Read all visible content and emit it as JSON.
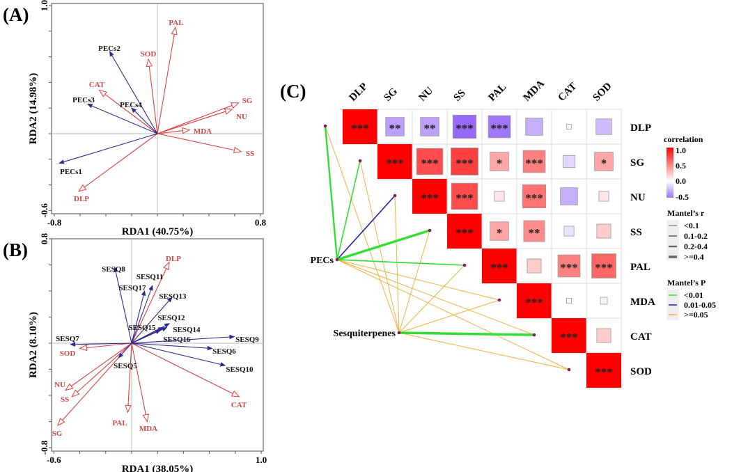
{
  "chart_data": [
    {
      "panel_label": "(A)",
      "type": "scatter",
      "subtype": "RDA biplot",
      "xlabel": "RDA1 (40.75%)",
      "ylabel": "RDA2 (14.98%)",
      "xlim": [
        -0.8,
        0.8
      ],
      "ylim": [
        -0.6,
        1.0
      ],
      "xtick_labels": [
        "-0.8",
        "0.8"
      ],
      "ytick_labels": [
        "-0.6",
        "1.0"
      ],
      "colors": {
        "response": "#d9403f",
        "explanatory": "#2b2b8c"
      },
      "response_vectors": [
        {
          "name": "PAL",
          "x": 0.14,
          "y": 0.83
        },
        {
          "name": "SOD",
          "x": -0.07,
          "y": 0.58
        },
        {
          "name": "CAT",
          "x": -0.45,
          "y": 0.34
        },
        {
          "name": "SG",
          "x": 0.63,
          "y": 0.24
        },
        {
          "name": "NU",
          "x": 0.58,
          "y": 0.19
        },
        {
          "name": "MDA",
          "x": 0.25,
          "y": 0.03
        },
        {
          "name": "SS",
          "x": 0.65,
          "y": -0.14
        },
        {
          "name": "DLP",
          "x": -0.61,
          "y": -0.45
        }
      ],
      "explanatory_vectors": [
        {
          "name": "PECs2",
          "x": -0.37,
          "y": 0.64
        },
        {
          "name": "PECs3",
          "x": -0.54,
          "y": 0.23
        },
        {
          "name": "PECs4",
          "x": -0.2,
          "y": 0.2
        },
        {
          "name": "PECs1",
          "x": -0.76,
          "y": -0.23
        }
      ]
    },
    {
      "panel_label": "(B)",
      "type": "scatter",
      "subtype": "RDA biplot",
      "xlabel": "RDA1 (38.05%)",
      "ylabel": "RDA2 (8.10%)",
      "xlim": [
        -0.6,
        1.0
      ],
      "ylim": [
        -0.8,
        0.8
      ],
      "xtick_labels": [
        "-0.6",
        "1.0"
      ],
      "ytick_labels": [
        "-0.8",
        "0.8"
      ],
      "colors": {
        "response": "#d9403f",
        "explanatory": "#2b2b8c"
      },
      "response_vectors": [
        {
          "name": "DLP",
          "x": 0.29,
          "y": 0.62
        },
        {
          "name": "SOD",
          "x": -0.4,
          "y": -0.04
        },
        {
          "name": "NU",
          "x": -0.51,
          "y": -0.36
        },
        {
          "name": "SS",
          "x": -0.46,
          "y": -0.41
        },
        {
          "name": "SG",
          "x": -0.57,
          "y": -0.63
        },
        {
          "name": "PAL",
          "x": -0.03,
          "y": -0.53
        },
        {
          "name": "MDA",
          "x": 0.12,
          "y": -0.6
        },
        {
          "name": "CAT",
          "x": 0.83,
          "y": -0.41
        }
      ],
      "explanatory_vectors": [
        {
          "name": "SESQ8",
          "x": -0.13,
          "y": 0.58
        },
        {
          "name": "SESQ11",
          "x": 0.16,
          "y": 0.44
        },
        {
          "name": "SESQ17",
          "x": 0.1,
          "y": 0.4
        },
        {
          "name": "SESQ13",
          "x": 0.31,
          "y": 0.35
        },
        {
          "name": "SESQ12",
          "x": 0.29,
          "y": 0.15
        },
        {
          "name": "SESQ15",
          "x": 0.24,
          "y": 0.12
        },
        {
          "name": "SESQ14",
          "x": 0.27,
          "y": 0.12
        },
        {
          "name": "SESQ16",
          "x": 0.22,
          "y": 0.1
        },
        {
          "name": "SESQ9",
          "x": 0.79,
          "y": 0.05
        },
        {
          "name": "SESQ6",
          "x": 0.62,
          "y": -0.04
        },
        {
          "name": "SESQ10",
          "x": 0.72,
          "y": -0.17
        },
        {
          "name": "SESQ7",
          "x": -0.47,
          "y": -0.01
        },
        {
          "name": "SESQ5",
          "x": -0.1,
          "y": -0.11
        }
      ]
    },
    {
      "panel_label": "(C)",
      "type": "heatmap",
      "variables": [
        "DLP",
        "SG",
        "NU",
        "SS",
        "PAL",
        "MDA",
        "CAT",
        "SOD"
      ],
      "correlation": [
        [
          1,
          -0.35,
          -0.35,
          -0.55,
          -0.5,
          -0.3,
          -0.02,
          -0.25
        ],
        [
          null,
          1,
          0.7,
          0.75,
          0.35,
          0.5,
          -0.15,
          0.35
        ],
        [
          null,
          null,
          1,
          0.7,
          0.1,
          0.55,
          -0.3,
          0.1
        ],
        [
          null,
          null,
          null,
          1,
          0.35,
          0.45,
          -0.1,
          0.2
        ],
        [
          null,
          null,
          null,
          null,
          1,
          0.2,
          0.5,
          0.6
        ],
        [
          null,
          null,
          null,
          null,
          null,
          1,
          0.02,
          -0.05
        ],
        [
          null,
          null,
          null,
          null,
          null,
          null,
          1,
          0.2
        ],
        [
          null,
          null,
          null,
          null,
          null,
          null,
          null,
          1
        ]
      ],
      "significance": [
        [
          "***",
          "**",
          "**",
          "***",
          "***",
          "",
          "",
          ""
        ],
        [
          "",
          "***",
          "***",
          "***",
          "*",
          "***",
          "",
          "*"
        ],
        [
          "",
          "",
          "***",
          "***",
          "",
          "***",
          "",
          ""
        ],
        [
          "",
          "",
          "",
          "***",
          "*",
          "**",
          "",
          ""
        ],
        [
          "",
          "",
          "",
          "",
          "***",
          "",
          "***",
          "***"
        ],
        [
          "",
          "",
          "",
          "",
          "",
          "***",
          "",
          ""
        ],
        [
          "",
          "",
          "",
          "",
          "",
          "",
          "***",
          ""
        ],
        [
          "",
          "",
          "",
          "",
          "",
          "",
          "",
          "***"
        ]
      ],
      "mantel": {
        "nodes": [
          "PECs",
          "Sesquiterpenes"
        ],
        "links": [
          {
            "from": "PECs",
            "to": "DLP",
            "r_class": "0.2-0.4",
            "p_class": "<0.01"
          },
          {
            "from": "PECs",
            "to": "SG",
            "r_class": "0.1-0.2",
            "p_class": "<0.01"
          },
          {
            "from": "PECs",
            "to": "NU",
            "r_class": "0.1-0.2",
            "p_class": "0.01-0.05"
          },
          {
            "from": "PECs",
            "to": "SS",
            "r_class": ">=0.4",
            "p_class": "<0.01"
          },
          {
            "from": "PECs",
            "to": "PAL",
            "r_class": "0.1-0.2",
            "p_class": "<0.01"
          },
          {
            "from": "PECs",
            "to": "MDA",
            "r_class": "<0.1",
            "p_class": ">=0.05"
          },
          {
            "from": "PECs",
            "to": "CAT",
            "r_class": "<0.1",
            "p_class": ">=0.05"
          },
          {
            "from": "PECs",
            "to": "SOD",
            "r_class": "<0.1",
            "p_class": ">=0.05"
          },
          {
            "from": "Sesquiterpenes",
            "to": "DLP",
            "r_class": "<0.1",
            "p_class": ">=0.05"
          },
          {
            "from": "Sesquiterpenes",
            "to": "SG",
            "r_class": "<0.1",
            "p_class": ">=0.05"
          },
          {
            "from": "Sesquiterpenes",
            "to": "NU",
            "r_class": "<0.1",
            "p_class": ">=0.05"
          },
          {
            "from": "Sesquiterpenes",
            "to": "SS",
            "r_class": "<0.1",
            "p_class": ">=0.05"
          },
          {
            "from": "Sesquiterpenes",
            "to": "PAL",
            "r_class": "<0.1",
            "p_class": ">=0.05"
          },
          {
            "from": "Sesquiterpenes",
            "to": "MDA",
            "r_class": "<0.1",
            "p_class": ">=0.05"
          },
          {
            "from": "Sesquiterpenes",
            "to": "CAT",
            "r_class": ">=0.4",
            "p_class": "<0.01"
          },
          {
            "from": "Sesquiterpenes",
            "to": "SOD",
            "r_class": "<0.1",
            "p_class": ">=0.05"
          }
        ]
      },
      "legend": {
        "correlation_title": "correlation",
        "correlation_ticks": [
          "1.0",
          "0.5",
          "0.0",
          "-0.5"
        ],
        "correlation_colors": {
          "positive": "#ff0000",
          "zero": "#ffffff",
          "negative": "#8c5cf5"
        },
        "mantel_r_title": "Mantel’s r",
        "mantel_r_classes": [
          "<0.1",
          "0.1-0.2",
          "0.2-0.4",
          ">=0.4"
        ],
        "mantel_p_title": "Mantel’s P",
        "mantel_p_classes": [
          "<0.01",
          "0.01-0.05",
          ">=0.05"
        ],
        "mantel_p_colors": {
          "<0.01": "#33dd33",
          "0.01-0.05": "#2020aa",
          ">=0.05": "#f0b040"
        }
      }
    }
  ]
}
